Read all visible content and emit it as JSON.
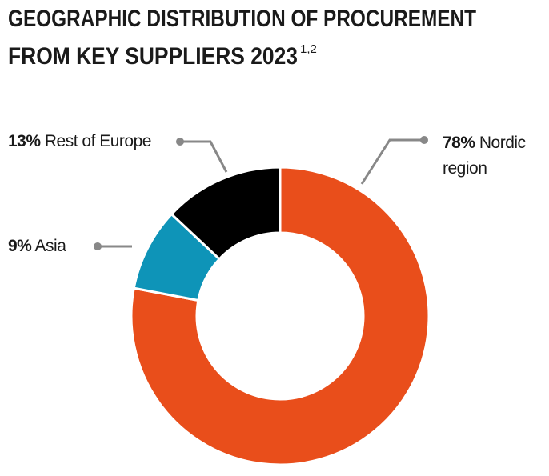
{
  "chart_data": {
    "type": "donut",
    "title": [
      "GEOGRAPHIC DISTRIBUTION OF PROCUREMENT",
      "FROM KEY SUPPLIERS 2023"
    ],
    "title_note": "1,2",
    "categories": [
      "Nordic region",
      "Asia",
      "Rest of Europe"
    ],
    "values": [
      78,
      9,
      13
    ],
    "value_labels": [
      "78%",
      "9%",
      "13%"
    ],
    "colors": [
      "#e94e1b",
      "#0e94b8",
      "#000000"
    ]
  }
}
